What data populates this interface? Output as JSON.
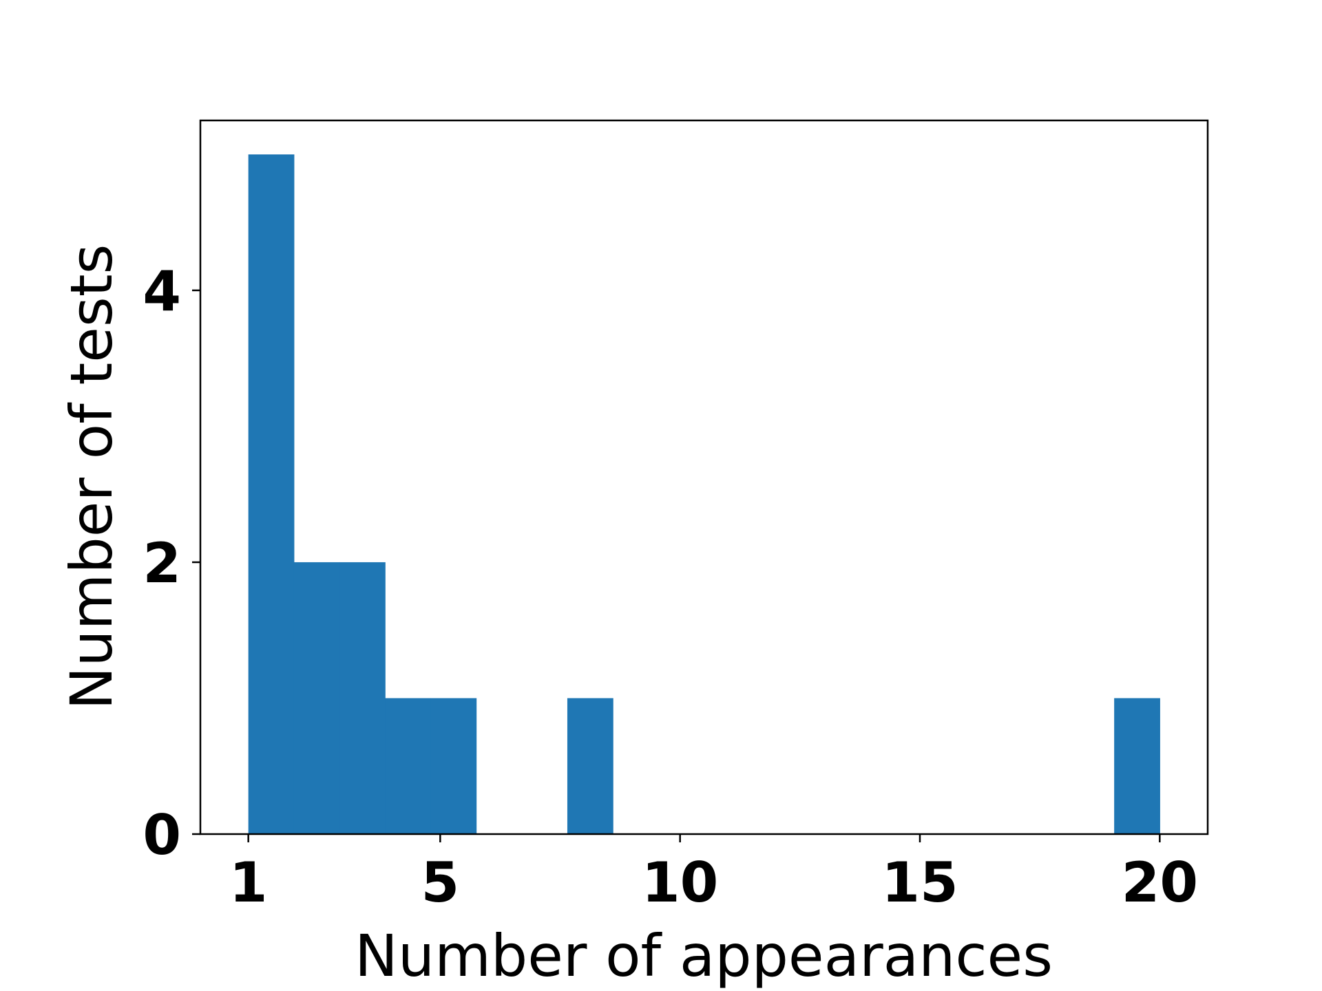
{
  "chart_data": {
    "type": "bar",
    "subtype": "histogram",
    "title": "",
    "xlabel": "Number of appearances",
    "ylabel": "Number of tests",
    "xlim": [
      0,
      21
    ],
    "ylim": [
      0,
      5.25
    ],
    "xticks": [
      1,
      5,
      10,
      15,
      20
    ],
    "yticks": [
      0,
      2,
      4
    ],
    "bar_color": "#1f77b4",
    "bins": [
      {
        "x0": 1.0,
        "x1": 1.95,
        "count": 5
      },
      {
        "x0": 1.95,
        "x1": 2.9,
        "count": 2
      },
      {
        "x0": 2.9,
        "x1": 3.85,
        "count": 2
      },
      {
        "x0": 3.85,
        "x1": 4.8,
        "count": 1
      },
      {
        "x0": 4.8,
        "x1": 5.75,
        "count": 1
      },
      {
        "x0": 5.75,
        "x1": 6.7,
        "count": 0
      },
      {
        "x0": 6.7,
        "x1": 7.65,
        "count": 0
      },
      {
        "x0": 7.65,
        "x1": 8.6,
        "count": 1
      },
      {
        "x0": 8.6,
        "x1": 9.55,
        "count": 0
      },
      {
        "x0": 9.55,
        "x1": 10.5,
        "count": 0
      },
      {
        "x0": 10.5,
        "x1": 11.45,
        "count": 0
      },
      {
        "x0": 11.45,
        "x1": 12.4,
        "count": 0
      },
      {
        "x0": 12.4,
        "x1": 13.35,
        "count": 0
      },
      {
        "x0": 13.35,
        "x1": 14.3,
        "count": 0
      },
      {
        "x0": 14.3,
        "x1": 15.25,
        "count": 0
      },
      {
        "x0": 15.25,
        "x1": 16.2,
        "count": 0
      },
      {
        "x0": 16.2,
        "x1": 17.15,
        "count": 0
      },
      {
        "x0": 17.15,
        "x1": 18.1,
        "count": 0
      },
      {
        "x0": 18.1,
        "x1": 19.05,
        "count": 0
      },
      {
        "x0": 19.05,
        "x1": 20.0,
        "count": 1
      }
    ]
  }
}
